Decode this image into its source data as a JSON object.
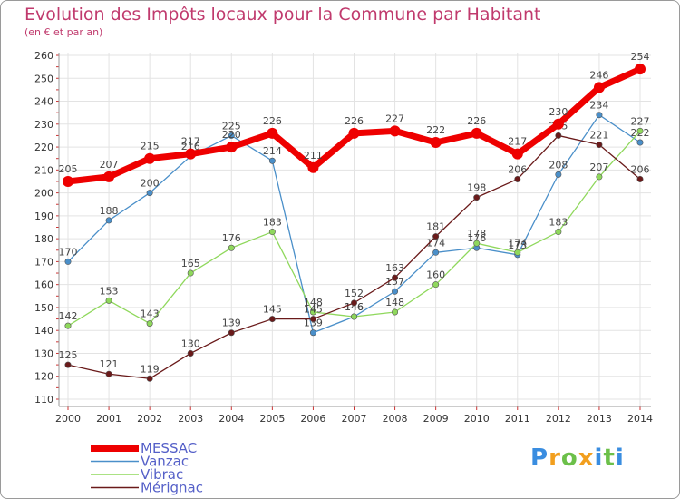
{
  "chart_data": {
    "type": "line",
    "title": "Evolution des Impôts locaux pour la Commune par Habitant",
    "subtitle": "(en € et par an)",
    "x": [
      "2000",
      "2001",
      "2002",
      "2003",
      "2004",
      "2005",
      "2006",
      "2007",
      "2008",
      "2009",
      "2010",
      "2011",
      "2012",
      "2013",
      "2014"
    ],
    "ylim": [
      110,
      260
    ],
    "yticks": [
      110,
      120,
      130,
      140,
      150,
      160,
      170,
      180,
      190,
      200,
      210,
      220,
      230,
      240,
      250,
      260
    ],
    "grid": true,
    "legend_position": "bottom-left",
    "series": [
      {
        "name": "Vanzac",
        "color": "#4a8fc9",
        "values": [
          170,
          188,
          200,
          216,
          225,
          214,
          139,
          146,
          157,
          174,
          176,
          173,
          208,
          234,
          222
        ]
      },
      {
        "name": "Vibrac",
        "color": "#8fd85c",
        "values": [
          142,
          153,
          143,
          165,
          176,
          183,
          148,
          146,
          148,
          160,
          178,
          174,
          183,
          207,
          227
        ]
      },
      {
        "name": "Mérignac",
        "color": "#6a1a1a",
        "values": [
          125,
          121,
          119,
          130,
          139,
          145,
          145,
          152,
          163,
          181,
          198,
          206,
          225,
          221,
          206
        ]
      },
      {
        "name": "MESSAC",
        "color": "#ee0000",
        "values": [
          205,
          207,
          215,
          217,
          220,
          226,
          211,
          226,
          227,
          222,
          226,
          217,
          230,
          246,
          254
        ]
      }
    ],
    "legend_order": [
      "MESSAC",
      "Vanzac",
      "Vibrac",
      "Mérignac"
    ]
  },
  "logo": {
    "letters": [
      "P",
      "r",
      "o",
      "x",
      "i",
      "t",
      "i"
    ],
    "colors": [
      "#3a8de0",
      "#f29f1e",
      "#6cc04a",
      "#f29f1e",
      "#3a8de0",
      "#6cc04a",
      "#3a8de0"
    ]
  }
}
